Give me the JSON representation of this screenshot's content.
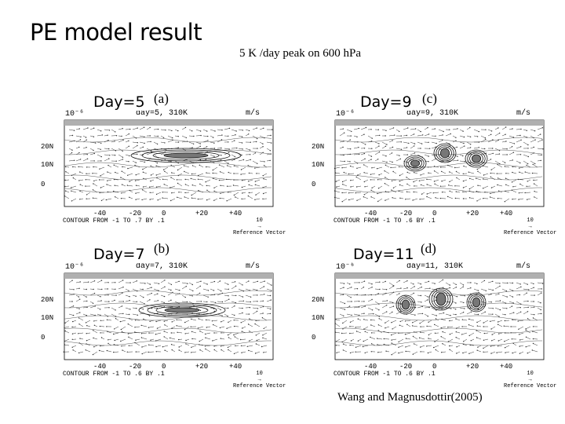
{
  "title": "PE model result",
  "subtitle": "5 K /day peak on 600 hPa",
  "caption": "Wang and Magnusdottir(2005)",
  "panels": [
    {
      "day_label": "Day=5",
      "letter": "(a)",
      "header_scale": "10⁻⁶",
      "header_day": "day=5, 310K",
      "header_units": "m/s",
      "y_ticks": [
        "20N",
        "10N",
        "0"
      ],
      "x_ticks": [
        "-40",
        "-20",
        "0",
        "+20",
        "+40"
      ],
      "contour_note": "CONTOUR FROM -1 TO .7 BY .1",
      "ref_value": "10",
      "ref_label": "Reference Vector"
    },
    {
      "day_label": "Day=9",
      "letter": "(c)",
      "header_scale": "10⁻⁶",
      "header_day": "day=9, 310K",
      "header_units": "m/s",
      "y_ticks": [
        "20N",
        "10N",
        "0"
      ],
      "x_ticks": [
        "-40",
        "-20",
        "0",
        "+20",
        "+40"
      ],
      "contour_note": "CONTOUR FROM -1 TO .6 BY .1",
      "ref_value": "10",
      "ref_label": "Reference Vector"
    },
    {
      "day_label": "Day=7",
      "letter": "(b)",
      "header_scale": "10⁻⁶",
      "header_day": "day=7, 310K",
      "header_units": "m/s",
      "y_ticks": [
        "20N",
        "10N",
        "0"
      ],
      "x_ticks": [
        "-40",
        "-20",
        "0",
        "+20",
        "+40"
      ],
      "contour_note": "CONTOUR FROM -1 TO .6 BY .1",
      "ref_value": "10",
      "ref_label": "Reference Vector"
    },
    {
      "day_label": "Day=11",
      "letter": "(d)",
      "header_scale": "10⁻⁶",
      "header_day": "day=11, 310K",
      "header_units": "m/s",
      "y_ticks": [
        "20N",
        "10N",
        "0"
      ],
      "x_ticks": [
        "-40",
        "-20",
        "0",
        "+20",
        "+40"
      ],
      "contour_note": "CONTOUR FROM -1 TO .6 BY .1",
      "ref_value": "10",
      "ref_label": "Reference Vector"
    }
  ]
}
